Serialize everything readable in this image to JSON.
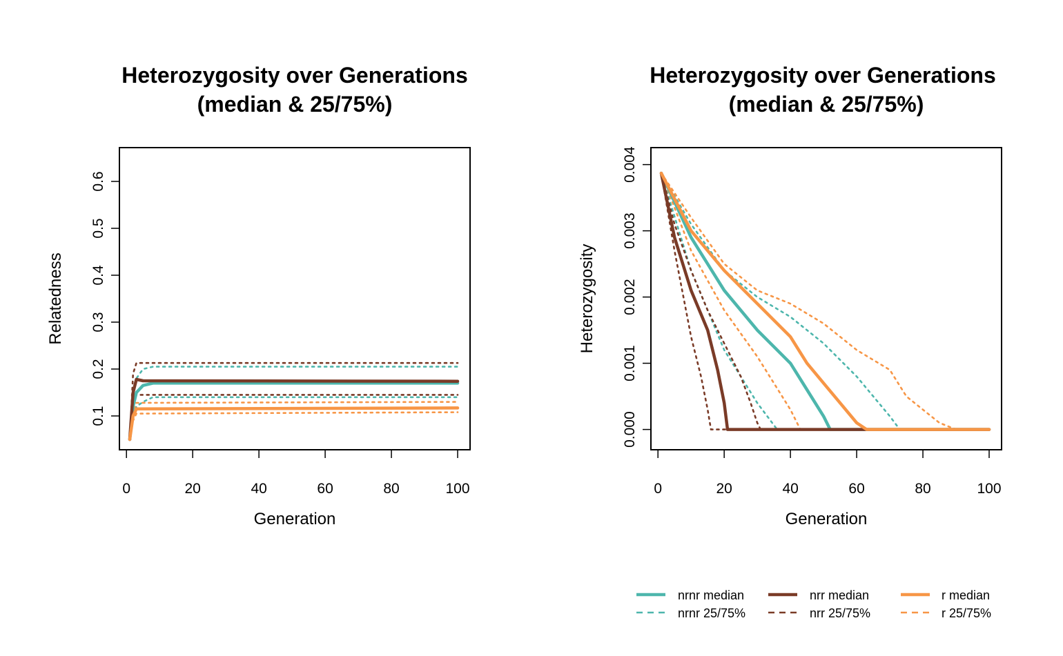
{
  "colors": {
    "nrnr": "#4DB6AC",
    "nrr": "#7A3B27",
    "r": "#F79646"
  },
  "legend": {
    "placement": "bottom-right",
    "entries": [
      {
        "label": "nrnr median",
        "color": "#4DB6AC",
        "style": "solid"
      },
      {
        "label": "nrnr 25/75%",
        "color": "#4DB6AC",
        "style": "dashed"
      },
      {
        "label": "nrr median",
        "color": "#7A3B27",
        "style": "solid"
      },
      {
        "label": "nrr 25/75%",
        "color": "#7A3B27",
        "style": "dashed"
      },
      {
        "label": "r median",
        "color": "#F79646",
        "style": "solid"
      },
      {
        "label": "r 25/75%",
        "color": "#F79646",
        "style": "dashed"
      }
    ]
  },
  "chart_data": [
    {
      "type": "line",
      "title": "Heterozygosity over Generations",
      "subtitle": "(median & 25/75%)",
      "xlabel": "Generation",
      "ylabel": "Relatedness",
      "xlim": [
        1,
        100
      ],
      "ylim": [
        0.05,
        0.65
      ],
      "xticks": [
        0,
        20,
        40,
        60,
        80,
        100
      ],
      "yticks": [
        0.1,
        0.2,
        0.3,
        0.4,
        0.5,
        0.6
      ],
      "yticklabels": [
        "0.1",
        "0.2",
        "0.3",
        "0.4",
        "0.5",
        "0.6"
      ],
      "grid": false,
      "series": [
        {
          "name": "nrnr median",
          "color": "#4DB6AC",
          "style": "solid",
          "points": [
            [
              1,
              0.05
            ],
            [
              2,
              0.12
            ],
            [
              3,
              0.15
            ],
            [
              5,
              0.165
            ],
            [
              8,
              0.17
            ],
            [
              100,
              0.17
            ]
          ]
        },
        {
          "name": "nrnr 25/75%",
          "color": "#4DB6AC",
          "style": "dashed",
          "points": [
            [
              1,
              0.05
            ],
            [
              2,
              0.1
            ],
            [
              3,
              0.12
            ],
            [
              5,
              0.13
            ],
            [
              8,
              0.14
            ],
            [
              100,
              0.14
            ]
          ]
        },
        {
          "name": "nrnr 25/75%",
          "color": "#4DB6AC",
          "style": "dashed",
          "points": [
            [
              1,
              0.05
            ],
            [
              2,
              0.14
            ],
            [
              3,
              0.18
            ],
            [
              5,
              0.2
            ],
            [
              8,
              0.205
            ],
            [
              100,
              0.205
            ]
          ]
        },
        {
          "name": "nrr median",
          "color": "#7A3B27",
          "style": "solid",
          "points": [
            [
              1,
              0.05
            ],
            [
              2,
              0.15
            ],
            [
              3,
              0.178
            ],
            [
              5,
              0.175
            ],
            [
              100,
              0.174
            ]
          ]
        },
        {
          "name": "nrr 25/75%",
          "color": "#7A3B27",
          "style": "dashed",
          "points": [
            [
              1,
              0.05
            ],
            [
              2,
              0.13
            ],
            [
              3,
              0.145
            ],
            [
              100,
              0.145
            ]
          ]
        },
        {
          "name": "nrr 25/75%",
          "color": "#7A3B27",
          "style": "dashed",
          "points": [
            [
              1,
              0.05
            ],
            [
              2,
              0.19
            ],
            [
              3,
              0.213
            ],
            [
              100,
              0.213
            ]
          ]
        },
        {
          "name": "r median",
          "color": "#F79646",
          "style": "solid",
          "points": [
            [
              1,
              0.05
            ],
            [
              2,
              0.1
            ],
            [
              3,
              0.115
            ],
            [
              100,
              0.117
            ]
          ]
        },
        {
          "name": "r 25/75%",
          "color": "#F79646",
          "style": "dashed",
          "points": [
            [
              1,
              0.05
            ],
            [
              2,
              0.09
            ],
            [
              3,
              0.105
            ],
            [
              100,
              0.108
            ]
          ]
        },
        {
          "name": "r 25/75%",
          "color": "#F79646",
          "style": "dashed",
          "points": [
            [
              1,
              0.05
            ],
            [
              2,
              0.11
            ],
            [
              3,
              0.128
            ],
            [
              100,
              0.13
            ]
          ]
        }
      ]
    },
    {
      "type": "line",
      "title": "Heterozygosity over Generations",
      "subtitle": "(median & 25/75%)",
      "xlabel": "Generation",
      "ylabel": "Heterozygosity",
      "xlim": [
        1,
        100
      ],
      "ylim": [
        -0.00015,
        0.0041
      ],
      "xticks": [
        0,
        20,
        40,
        60,
        80,
        100
      ],
      "yticks": [
        0,
        0.001,
        0.002,
        0.003,
        0.004
      ],
      "yticklabels": [
        "0.000",
        "0.001",
        "0.002",
        "0.003",
        "0.004"
      ],
      "grid": false,
      "series": [
        {
          "name": "nrnr median",
          "color": "#4DB6AC",
          "style": "solid",
          "points": [
            [
              1,
              0.00387
            ],
            [
              10,
              0.0029
            ],
            [
              20,
              0.0021
            ],
            [
              30,
              0.0015
            ],
            [
              40,
              0.001
            ],
            [
              45,
              0.0006
            ],
            [
              50,
              0.0002
            ],
            [
              52,
              0.0
            ],
            [
              100,
              0.0
            ]
          ]
        },
        {
          "name": "nrnr 25/75%",
          "color": "#4DB6AC",
          "style": "dashed",
          "points": [
            [
              1,
              0.00387
            ],
            [
              10,
              0.0024
            ],
            [
              15,
              0.0018
            ],
            [
              20,
              0.0012
            ],
            [
              25,
              0.0008
            ],
            [
              30,
              0.0004
            ],
            [
              36,
              0.0
            ],
            [
              100,
              0.0
            ]
          ]
        },
        {
          "name": "nrnr 25/75%",
          "color": "#4DB6AC",
          "style": "dashed",
          "points": [
            [
              1,
              0.00387
            ],
            [
              10,
              0.0031
            ],
            [
              20,
              0.0024
            ],
            [
              30,
              0.002
            ],
            [
              40,
              0.0017
            ],
            [
              50,
              0.0013
            ],
            [
              60,
              0.0008
            ],
            [
              65,
              0.0005
            ],
            [
              70,
              0.0002
            ],
            [
              73,
              0.0
            ],
            [
              100,
              0.0
            ]
          ]
        },
        {
          "name": "nrr median",
          "color": "#7A3B27",
          "style": "solid",
          "points": [
            [
              1,
              0.00387
            ],
            [
              5,
              0.0029
            ],
            [
              10,
              0.0021
            ],
            [
              15,
              0.0015
            ],
            [
              18,
              0.0009
            ],
            [
              20,
              0.0004
            ],
            [
              21,
              0.0
            ],
            [
              100,
              0.0
            ]
          ]
        },
        {
          "name": "nrr 25/75%",
          "color": "#7A3B27",
          "style": "dashed",
          "points": [
            [
              1,
              0.00387
            ],
            [
              5,
              0.0027
            ],
            [
              10,
              0.0014
            ],
            [
              13,
              0.0008
            ],
            [
              15,
              0.0003
            ],
            [
              16,
              0.0
            ],
            [
              100,
              0.0
            ]
          ]
        },
        {
          "name": "nrr 25/75%",
          "color": "#7A3B27",
          "style": "dashed",
          "points": [
            [
              1,
              0.00387
            ],
            [
              5,
              0.0031
            ],
            [
              10,
              0.0024
            ],
            [
              15,
              0.0018
            ],
            [
              20,
              0.0013
            ],
            [
              25,
              0.0008
            ],
            [
              28,
              0.0004
            ],
            [
              30,
              0.0001
            ],
            [
              31,
              0.0
            ],
            [
              100,
              0.0
            ]
          ]
        },
        {
          "name": "r median",
          "color": "#F79646",
          "style": "solid",
          "points": [
            [
              1,
              0.00387
            ],
            [
              10,
              0.003
            ],
            [
              20,
              0.0024
            ],
            [
              30,
              0.0019
            ],
            [
              40,
              0.0014
            ],
            [
              45,
              0.001
            ],
            [
              50,
              0.0007
            ],
            [
              55,
              0.0004
            ],
            [
              60,
              0.0001
            ],
            [
              63,
              0.0
            ],
            [
              100,
              0.0
            ]
          ]
        },
        {
          "name": "r 25/75%",
          "color": "#F79646",
          "style": "dashed",
          "points": [
            [
              1,
              0.00387
            ],
            [
              10,
              0.0027
            ],
            [
              20,
              0.0018
            ],
            [
              30,
              0.0011
            ],
            [
              35,
              0.0007
            ],
            [
              40,
              0.0003
            ],
            [
              43,
              0.0
            ],
            [
              100,
              0.0
            ]
          ]
        },
        {
          "name": "r 25/75%",
          "color": "#F79646",
          "style": "dashed",
          "points": [
            [
              1,
              0.00387
            ],
            [
              10,
              0.0032
            ],
            [
              20,
              0.0025
            ],
            [
              30,
              0.0021
            ],
            [
              40,
              0.0019
            ],
            [
              50,
              0.0016
            ],
            [
              60,
              0.0012
            ],
            [
              70,
              0.0009
            ],
            [
              75,
              0.0005
            ],
            [
              80,
              0.0003
            ],
            [
              85,
              0.0001
            ],
            [
              90,
              0.0
            ],
            [
              100,
              0.0
            ]
          ]
        }
      ]
    }
  ]
}
